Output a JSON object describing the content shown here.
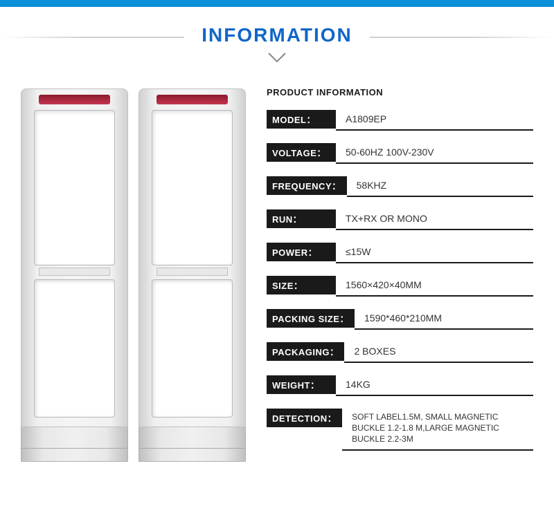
{
  "header": {
    "title": "INFORMATION",
    "title_color": "#1166c8",
    "top_bar_color": "#0a8fd8"
  },
  "specs_title": "PRODUCT INFORMATION",
  "specs": [
    {
      "label": "MODEL：",
      "value": "A1809EP"
    },
    {
      "label": "VOLTAGE：",
      "value": "50-60HZ  100V-230V"
    },
    {
      "label": "FREQUENCY：",
      "value": "58KHZ"
    },
    {
      "label": "RUN：",
      "value": "TX+RX OR  MONO"
    },
    {
      "label": "POWER：",
      "value": "≤15W"
    },
    {
      "label": "SIZE：",
      "value": "1560×420×40MM"
    },
    {
      "label": "PACKING SIZE：",
      "value": "1590*460*210MM"
    },
    {
      "label": "PACKAGING：",
      "value": " 2 BOXES"
    },
    {
      "label": "WEIGHT：",
      "value": "14KG"
    },
    {
      "label": "DETECTION：",
      "value": "SOFT LABEL1.5M, SMALL MAGNETIC BUCKLE 1.2-1.8 M,LARGE MAGNETIC BUCKLE 2.2-3M",
      "multi": true
    }
  ],
  "styling": {
    "label_bg": "#1a1a1a",
    "label_color": "#ffffff",
    "value_color": "#333333",
    "underline_color": "#1a1a1a",
    "gate_light_color": "#8b1a2e",
    "background": "#ffffff"
  }
}
